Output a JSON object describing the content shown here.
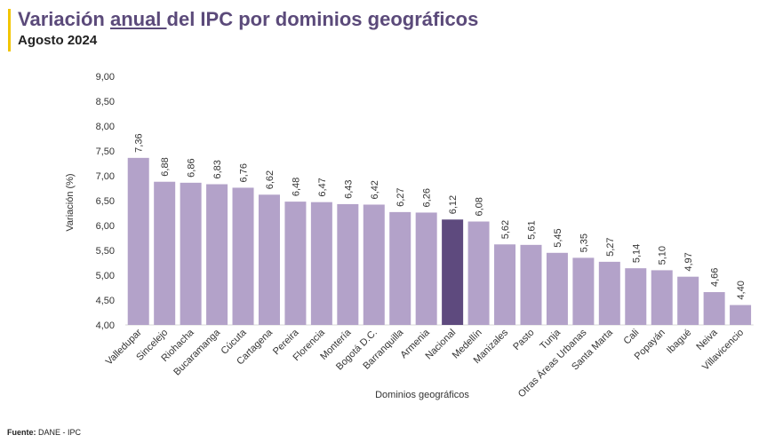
{
  "header": {
    "title_pre": "Variación ",
    "title_underlined": "anual ",
    "title_post": "del IPC por dominios geográficos",
    "subtitle": "Agosto 2024"
  },
  "footer": {
    "source_label": "Fuente:",
    "source_text": " DANE - IPC"
  },
  "colors": {
    "bar": "#b3a2c9",
    "highlight": "#5e4a7e",
    "title": "#5b4a7a",
    "accent": "#f2c500"
  },
  "chart_data": {
    "type": "bar",
    "xlabel": "Dominios geográficos",
    "ylabel": "Variación (%)",
    "ylim": [
      4.0,
      9.0
    ],
    "yticks": [
      "4,00",
      "4,50",
      "5,00",
      "5,50",
      "6,00",
      "6,50",
      "7,00",
      "7,50",
      "8,00",
      "8,50",
      "9,00"
    ],
    "grid": false,
    "highlight_category": "Nacional",
    "categories": [
      "Valledupar",
      "Sincelejo",
      "Riohacha",
      "Bucaramanga",
      "Cúcuta",
      "Cartagena",
      "Pereira",
      "Florencia",
      "Montería",
      "Bogotá D.C.",
      "Barranquilla",
      "Armenia",
      "Nacional",
      "Medellín",
      "Manizales",
      "Pasto",
      "Tunja",
      "Otras Áreas Urbanas",
      "Santa Marta",
      "Cali",
      "Popayán",
      "Ibagué",
      "Neiva",
      "Villavicencio"
    ],
    "values": [
      7.36,
      6.88,
      6.86,
      6.83,
      6.76,
      6.62,
      6.48,
      6.47,
      6.43,
      6.42,
      6.27,
      6.26,
      6.12,
      6.08,
      5.62,
      5.61,
      5.45,
      5.35,
      5.27,
      5.14,
      5.1,
      4.97,
      4.66,
      4.4
    ],
    "value_labels": [
      "7,36",
      "6,88",
      "6,86",
      "6,83",
      "6,76",
      "6,62",
      "6,48",
      "6,47",
      "6,43",
      "6,42",
      "6,27",
      "6,26",
      "6,12",
      "6,08",
      "5,62",
      "5,61",
      "5,45",
      "5,35",
      "5,27",
      "5,14",
      "5,10",
      "4,97",
      "4,66",
      "4,40"
    ]
  }
}
